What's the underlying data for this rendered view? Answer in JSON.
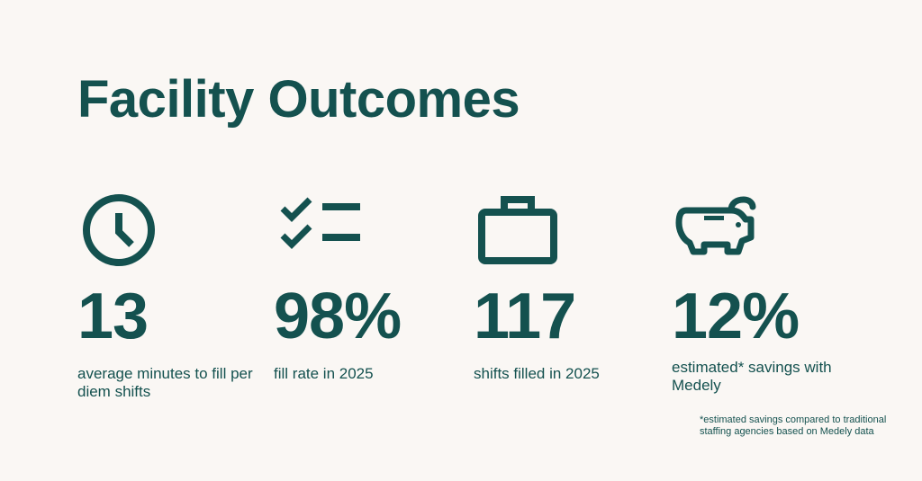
{
  "title": "Facility Outcomes",
  "stats": [
    {
      "icon": "clock-icon",
      "value": "13",
      "label": "average minutes to fill per diem shifts"
    },
    {
      "icon": "checklist-icon",
      "value": "98%",
      "label": "fill rate in 2025"
    },
    {
      "icon": "briefcase-icon",
      "value": "117",
      "label": "shifts filled in 2025"
    },
    {
      "icon": "piggy-bank-icon",
      "value": "12%",
      "label": "estimated* savings with Medely"
    }
  ],
  "footnote": "*estimated savings compared to traditional staffing agencies based on Medely data",
  "colors": {
    "background": "#faf7f4",
    "text": "#14514f"
  }
}
